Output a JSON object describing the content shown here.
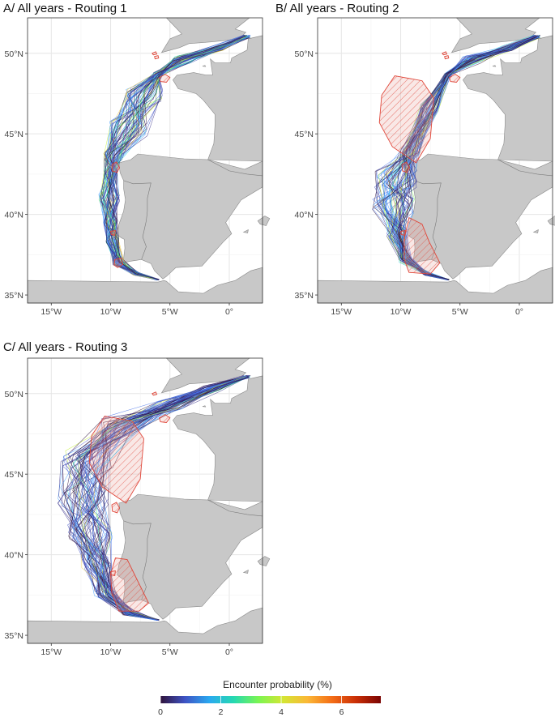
{
  "panels": [
    {
      "title": "A/ All years - Routing 1"
    },
    {
      "title": "B/ All years - Routing 2"
    },
    {
      "title": "C/ All years - Routing 3"
    }
  ],
  "axes": {
    "lat_labels": [
      "50°N",
      "45°N",
      "40°N",
      "35°N"
    ],
    "lon_labels": [
      "15°W",
      "10°W",
      "5°W",
      "0°"
    ]
  },
  "colors": {
    "land": "#c8c8c8",
    "grid": "#e6e6e6",
    "zone_stroke": "#e0473a",
    "zone_fill": "#e6a39a"
  },
  "legend": {
    "title": "Encounter probability (%)",
    "ticks": [
      "0",
      "2",
      "4",
      "6"
    ],
    "stops": [
      "#30123b",
      "#3e53c4",
      "#2aa9f0",
      "#26d9b0",
      "#7af552",
      "#d3e634",
      "#fbb836",
      "#f46e17",
      "#c92e06",
      "#7a0403"
    ]
  }
}
